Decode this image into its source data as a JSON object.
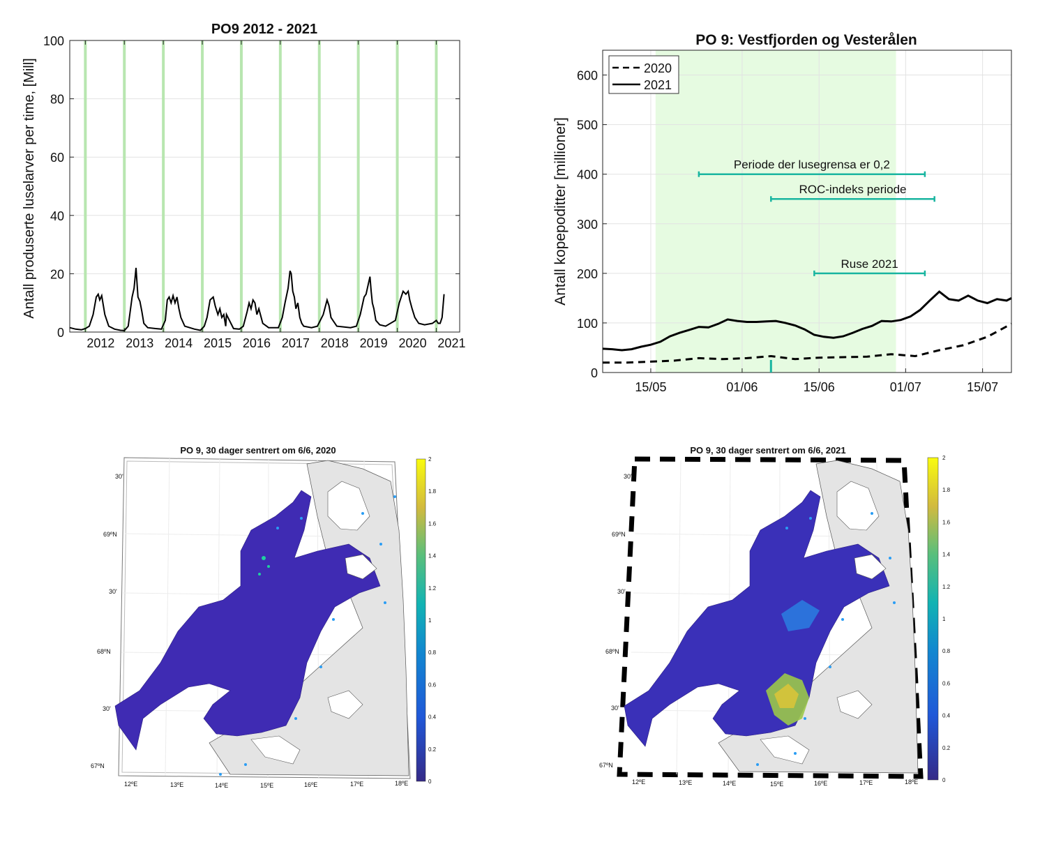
{
  "chart_data": [
    {
      "type": "line",
      "title": "PO9 2012 - 2021",
      "ylabel": "Antall produserte luselarver per time, [Mill]",
      "xlabel": "",
      "xlim": [
        2011.6,
        2021.6
      ],
      "ylim": [
        0,
        100
      ],
      "xticks": [
        2012,
        2013,
        2014,
        2015,
        2016,
        2017,
        2018,
        2019,
        2020,
        2021
      ],
      "xtick_labels": [
        "2012",
        "2013",
        "2014",
        "2015",
        "2016",
        "2017",
        "2018",
        "2019",
        "2020",
        "2021"
      ],
      "yticks": [
        0,
        20,
        40,
        60,
        80,
        100
      ],
      "ytick_labels": [
        "0",
        "20",
        "40",
        "60",
        "80",
        "100"
      ],
      "grid": true,
      "green_band_x": [
        2012.0,
        2013.0,
        2014.0,
        2015.0,
        2016.0,
        2017.0,
        2018.0,
        2019.0,
        2020.0,
        2021.0
      ],
      "series": [
        {
          "name": "PO9",
          "x": [
            2011.6,
            2011.75,
            2011.9,
            2012.0,
            2012.1,
            2012.2,
            2012.28,
            2012.33,
            2012.37,
            2012.42,
            2012.5,
            2012.6,
            2012.75,
            2012.9,
            2013.0,
            2013.1,
            2013.2,
            2013.25,
            2013.3,
            2013.32,
            2013.35,
            2013.4,
            2013.45,
            2013.5,
            2013.6,
            2013.8,
            2013.95,
            2014.05,
            2014.1,
            2014.15,
            2014.2,
            2014.25,
            2014.3,
            2014.35,
            2014.4,
            2014.45,
            2014.55,
            2014.8,
            2014.95,
            2015.05,
            2015.12,
            2015.2,
            2015.28,
            2015.33,
            2015.4,
            2015.45,
            2015.5,
            2015.55,
            2015.6,
            2015.62,
            2015.8,
            2015.95,
            2016.05,
            2016.15,
            2016.2,
            2016.25,
            2016.3,
            2016.35,
            2016.4,
            2016.45,
            2016.55,
            2016.7,
            2016.95,
            2017.05,
            2017.12,
            2017.2,
            2017.25,
            2017.28,
            2017.32,
            2017.36,
            2017.4,
            2017.45,
            2017.5,
            2017.55,
            2017.6,
            2017.8,
            2017.95,
            2018.1,
            2018.2,
            2018.25,
            2018.3,
            2018.35,
            2018.45,
            2018.6,
            2018.8,
            2018.95,
            2019.05,
            2019.15,
            2019.2,
            2019.25,
            2019.3,
            2019.33,
            2019.36,
            2019.4,
            2019.45,
            2019.55,
            2019.7,
            2019.95,
            2020.05,
            2020.15,
            2020.22,
            2020.28,
            2020.32,
            2020.38,
            2020.45,
            2020.55,
            2020.7,
            2020.9,
            2021.0,
            2021.05,
            2021.1,
            2021.15,
            2021.2
          ],
          "values": [
            1.5,
            1,
            0.8,
            1.2,
            2,
            6,
            12,
            13,
            11,
            12.5,
            6,
            2,
            1,
            0.6,
            0.5,
            2,
            12,
            15,
            22,
            18,
            12,
            10.5,
            7,
            3,
            1.5,
            1.2,
            1,
            4,
            11,
            12,
            10,
            12.5,
            10,
            12,
            8,
            5,
            2,
            1,
            0.6,
            2,
            5,
            11,
            12,
            9,
            6,
            8,
            5,
            6,
            2,
            6,
            1.2,
            1,
            2,
            7,
            10,
            8,
            11,
            10,
            6,
            8,
            3,
            1.5,
            1.5,
            5,
            10,
            15,
            21,
            20,
            14,
            12,
            8,
            10,
            5,
            3,
            2,
            1.5,
            2,
            6,
            11,
            9,
            5,
            4,
            2,
            1.8,
            1.5,
            2,
            6,
            12,
            13,
            16,
            19,
            14,
            10,
            8,
            4,
            2.5,
            2,
            4,
            10,
            14,
            13,
            14,
            11,
            8,
            5,
            3,
            2.5,
            3,
            4,
            3,
            3,
            5,
            13
          ]
        }
      ]
    },
    {
      "type": "line",
      "title": "PO 9: Vestfjorden og Vesterålen",
      "ylabel": "Antall kopepoditter [millioner]",
      "xlabel": "",
      "xlim": [
        0,
        85
      ],
      "ylim": [
        0,
        650
      ],
      "xticks": [
        10,
        29,
        45,
        63,
        79
      ],
      "xtick_labels": [
        "15/05",
        "01/06",
        "15/06",
        "01/07",
        "15/07"
      ],
      "yticks": [
        0,
        100,
        200,
        300,
        400,
        500,
        600
      ],
      "ytick_labels": [
        "0",
        "100",
        "200",
        "300",
        "400",
        "500",
        "600"
      ],
      "grid": true,
      "shaded_region_x": [
        11,
        61
      ],
      "legend": [
        "2020",
        "2021"
      ],
      "legend_position": "top-left",
      "annotations": [
        {
          "label": "Periode der lusegrensa er 0,2",
          "x_range": [
            20,
            67
          ],
          "y": 400
        },
        {
          "label": "ROC-indeks periode",
          "x_range": [
            35,
            69
          ],
          "y": 350
        },
        {
          "label": "Ruse 2021",
          "x_range": [
            44,
            67
          ],
          "y": 200
        }
      ],
      "marker_x": 35,
      "series": [
        {
          "name": "2020",
          "style": "dashed",
          "x": [
            0,
            5,
            10,
            15,
            20,
            25,
            30,
            35,
            40,
            45,
            50,
            55,
            60,
            65,
            70,
            75,
            80,
            85
          ],
          "values": [
            20,
            20,
            22,
            24,
            29,
            27,
            29,
            33,
            27,
            30,
            31,
            32,
            37,
            33,
            45,
            55,
            72,
            98
          ]
        },
        {
          "name": "2021",
          "style": "solid",
          "x": [
            0,
            2,
            4,
            6,
            8,
            10,
            12,
            14,
            16,
            18,
            20,
            22,
            24,
            26,
            28,
            30,
            32,
            34,
            36,
            38,
            40,
            42,
            44,
            46,
            48,
            50,
            52,
            54,
            56,
            58,
            60,
            62,
            64,
            66,
            68,
            70,
            72,
            74,
            76,
            78,
            80,
            82,
            84,
            85
          ],
          "values": [
            48,
            47,
            45,
            47,
            52,
            56,
            62,
            73,
            80,
            86,
            92,
            91,
            98,
            107,
            104,
            102,
            102,
            103,
            104,
            100,
            95,
            87,
            76,
            72,
            70,
            73,
            80,
            88,
            94,
            104,
            103,
            106,
            113,
            126,
            145,
            163,
            148,
            145,
            155,
            145,
            140,
            148,
            145,
            150
          ]
        }
      ]
    },
    {
      "type": "heatmap",
      "title": "PO 9, 30 dager sentrert om 6/6, 2020",
      "lat_labels": [
        "30'",
        "69ºN",
        "30'",
        "68ºN",
        "30'",
        "67ºN"
      ],
      "lon_labels": [
        "12ºE",
        "13ºE",
        "14ºE",
        "15ºE",
        "16ºE",
        "17ºE",
        "18ºE"
      ],
      "colorbar_ticks": [
        "2",
        "1.8",
        "1.6",
        "1.4",
        "1.2",
        "1",
        "0.8",
        "0.6",
        "0.4",
        "0.2",
        "0"
      ],
      "colorbar_range": [
        0,
        2
      ]
    },
    {
      "type": "heatmap",
      "title": "PO 9, 30 dager sentrert om 6/6, 2021",
      "lat_labels": [
        "30'",
        "69ºN",
        "30'",
        "68ºN",
        "30'",
        "67ºN"
      ],
      "lon_labels": [
        "12ºE",
        "13ºE",
        "14ºE",
        "15ºE",
        "16ºE",
        "17ºE",
        "18ºE"
      ],
      "colorbar_ticks": [
        "2",
        "1.8",
        "1.6",
        "1.4",
        "1.2",
        "1",
        "0.8",
        "0.6",
        "0.4",
        "0.2",
        "0"
      ],
      "colorbar_range": [
        0,
        2
      ]
    }
  ],
  "colors": {
    "line": "#000000",
    "green_band": "#b8e6b0",
    "shaded": "#e6fbe1",
    "annotation": "#19b5a0",
    "grid": "#e2e2e2",
    "sea": "#3f2bb3",
    "land": "#e4e4e4"
  }
}
